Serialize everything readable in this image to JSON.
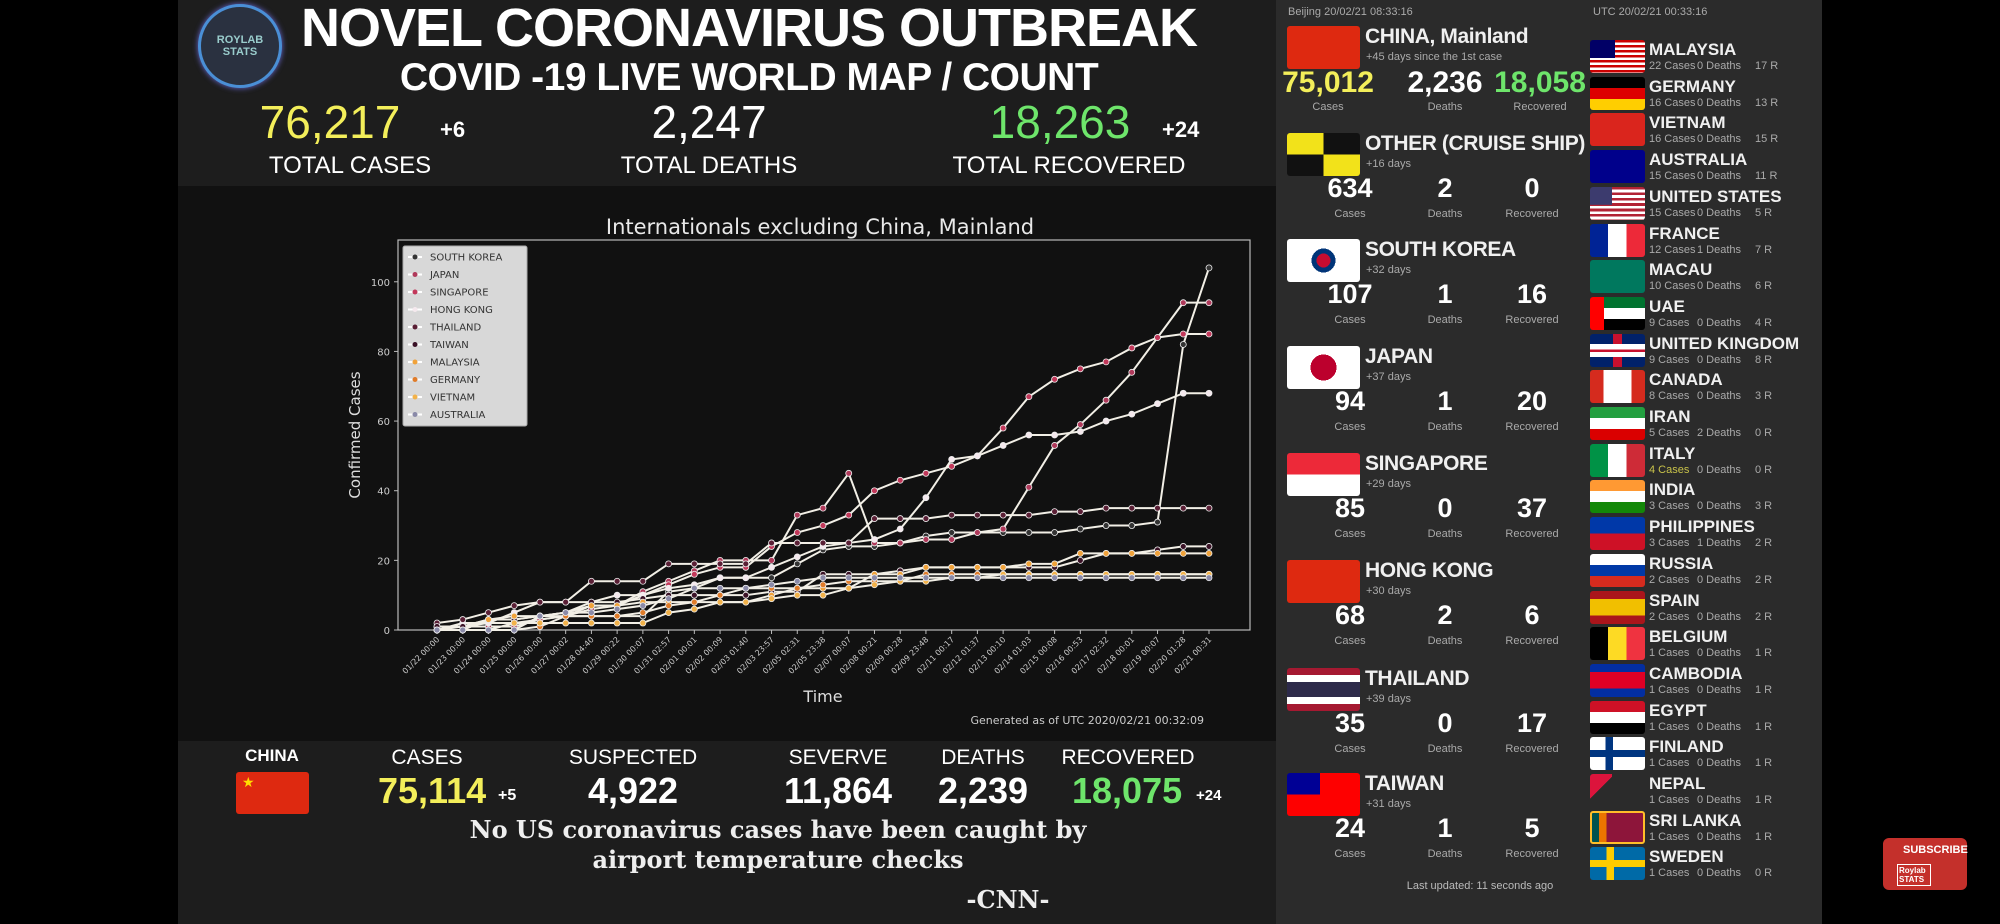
{
  "header": {
    "logo_text": "ROYLAB STATS",
    "title": "NOVEL CORONAVIRUS OUTBREAK",
    "subtitle": "COVID -19 LIVE WORLD MAP / COUNT",
    "total_cases": "76,217",
    "total_cases_delta": "+6",
    "total_cases_label": "TOTAL CASES",
    "total_deaths": "2,247",
    "total_deaths_label": "TOTAL DEATHS",
    "total_recovered": "18,263",
    "total_recovered_delta": "+24",
    "total_recovered_label": "TOTAL RECOVERED",
    "colors": {
      "cases": "#f3ee5a",
      "recovered": "#6ee56b"
    }
  },
  "chart_data": {
    "type": "line",
    "title": "Internationals excluding China, Mainland",
    "xlabel": "Time",
    "ylabel": "Confirmed Cases",
    "ylim": [
      0,
      112
    ],
    "yticks": [
      0,
      20,
      40,
      60,
      80,
      100
    ],
    "legend_position": "top-left",
    "grid": false,
    "footnote": "Generated as of UTC 2020/02/21 00:32:09",
    "categories": [
      "01/22 00:00",
      "01/23 00:00",
      "01/24 00:00",
      "01/25 00:00",
      "01/26 00:00",
      "01/27 00:02",
      "01/28 04:40",
      "01/29 00:22",
      "01/30 00:07",
      "01/31 02:57",
      "02/01 00:01",
      "02/02 00:09",
      "02/03 01:40",
      "02/03 23:57",
      "02/05 02:31",
      "02/05 23:38",
      "02/07 00:07",
      "02/08 00:21",
      "02/09 00:28",
      "02/09 23:48",
      "02/11 00:17",
      "02/12 01:37",
      "02/13 00:10",
      "02/14 01:03",
      "02/15 00:08",
      "02/16 00:53",
      "02/17 02:32",
      "02/18 00:01",
      "02/19 00:07",
      "02/20 01:28",
      "02/21 00:31"
    ],
    "series": [
      {
        "name": "SOUTH KOREA",
        "color": "#333333",
        "values": [
          1,
          1,
          2,
          2,
          3,
          4,
          4,
          4,
          4,
          11,
          12,
          15,
          15,
          15,
          19,
          23,
          24,
          24,
          25,
          27,
          28,
          28,
          28,
          28,
          28,
          29,
          30,
          30,
          31,
          82,
          104
        ]
      },
      {
        "name": "JAPAN",
        "color": "#b03a5b",
        "values": [
          1,
          1,
          1,
          1,
          3,
          4,
          6,
          7,
          11,
          14,
          17,
          20,
          20,
          20,
          33,
          35,
          45,
          25,
          25,
          26,
          26,
          28,
          29,
          41,
          53,
          59,
          66,
          74,
          84,
          94,
          94
        ]
      },
      {
        "name": "SINGAPORE",
        "color": "#c2385a",
        "values": [
          0,
          1,
          3,
          3,
          4,
          5,
          7,
          7,
          10,
          13,
          16,
          18,
          18,
          24,
          28,
          30,
          33,
          40,
          43,
          45,
          47,
          50,
          58,
          67,
          72,
          75,
          77,
          81,
          84,
          85,
          85
        ]
      },
      {
        "name": "HONG KONG",
        "color": "#f5e9ee",
        "values": [
          0,
          2,
          2,
          5,
          8,
          8,
          8,
          10,
          10,
          12,
          13,
          15,
          15,
          18,
          21,
          24,
          25,
          26,
          29,
          38,
          49,
          50,
          53,
          56,
          56,
          57,
          60,
          62,
          65,
          68,
          68
        ]
      },
      {
        "name": "THAILAND",
        "color": "#5a1f35",
        "values": [
          2,
          3,
          5,
          7,
          8,
          8,
          14,
          14,
          14,
          19,
          19,
          19,
          19,
          25,
          25,
          25,
          25,
          32,
          32,
          32,
          33,
          33,
          33,
          33,
          34,
          34,
          35,
          35,
          35,
          35,
          35
        ]
      },
      {
        "name": "TAIWAN",
        "color": "#3a1226",
        "values": [
          1,
          1,
          3,
          3,
          4,
          5,
          8,
          8,
          9,
          10,
          10,
          10,
          10,
          11,
          11,
          16,
          16,
          16,
          17,
          18,
          18,
          18,
          18,
          18,
          18,
          20,
          22,
          22,
          23,
          24,
          24
        ]
      },
      {
        "name": "MALAYSIA",
        "color": "#f0a23a",
        "values": [
          0,
          0,
          3,
          4,
          4,
          4,
          7,
          7,
          8,
          8,
          8,
          8,
          8,
          10,
          12,
          12,
          12,
          16,
          16,
          18,
          18,
          18,
          18,
          19,
          19,
          22,
          22,
          22,
          22,
          22,
          22
        ]
      },
      {
        "name": "GERMANY",
        "color": "#e07c2a",
        "values": [
          0,
          0,
          0,
          0,
          1,
          4,
          4,
          4,
          5,
          7,
          8,
          10,
          12,
          12,
          12,
          13,
          14,
          14,
          14,
          16,
          16,
          16,
          16,
          16,
          16,
          16,
          16,
          16,
          16,
          16,
          16
        ]
      },
      {
        "name": "VIETNAM",
        "color": "#f2b24a",
        "values": [
          0,
          0,
          0,
          2,
          2,
          2,
          2,
          2,
          2,
          5,
          6,
          8,
          8,
          9,
          10,
          10,
          12,
          13,
          14,
          14,
          15,
          15,
          16,
          16,
          16,
          16,
          16,
          16,
          16,
          16,
          16
        ]
      },
      {
        "name": "AUSTRALIA",
        "color": "#8a8aa8",
        "values": [
          0,
          0,
          0,
          0,
          4,
          5,
          5,
          6,
          7,
          9,
          12,
          12,
          12,
          13,
          14,
          15,
          15,
          15,
          15,
          15,
          15,
          15,
          15,
          15,
          15,
          15,
          15,
          15,
          15,
          15,
          15
        ]
      }
    ]
  },
  "china_bar": {
    "label": "CHINA",
    "cases_label": "CASES",
    "cases": "75,114",
    "cases_delta": "+5",
    "suspected_label": "SUSPECTED",
    "suspected": "4,922",
    "severe_label": "SEVERVE",
    "severe": "11,864",
    "deaths_label": "DEATHS",
    "deaths": "2,239",
    "recovered_label": "RECOVERED",
    "recovered": "18,075",
    "recovered_delta": "+24"
  },
  "quote": {
    "line1": "No US coronavirus cases have been caught by",
    "line2": "airport temperature checks",
    "source": "-CNN-"
  },
  "right_panel": {
    "beijing_time": "Beijing 20/02/21 08:33:16",
    "utc_time": "UTC 20/02/21 00:33:16",
    "last_updated": "Last updated: 11 seconds ago",
    "labels": {
      "cases": "Cases",
      "deaths": "Deaths",
      "recovered": "Recovered"
    },
    "major": [
      {
        "name": "CHINA, Mainland",
        "flag": "china-flag",
        "days": "+45 days since the 1st case",
        "cases": "75,012",
        "deaths": "2,236",
        "recovered": "18,058"
      },
      {
        "name": "OTHER (CRUISE SHIP)",
        "flag": "checkered-flag",
        "days": "+16 days",
        "cases": "634",
        "deaths": "2",
        "recovered": "0"
      },
      {
        "name": "SOUTH KOREA",
        "flag": "south-korea-flag",
        "days": "+32 days",
        "cases": "107",
        "deaths": "1",
        "recovered": "16"
      },
      {
        "name": "JAPAN",
        "flag": "japan-flag",
        "days": "+37 days",
        "cases": "94",
        "deaths": "1",
        "recovered": "20"
      },
      {
        "name": "SINGAPORE",
        "flag": "singapore-flag",
        "days": "+29 days",
        "cases": "85",
        "deaths": "0",
        "recovered": "37"
      },
      {
        "name": "HONG KONG",
        "flag": "hong-kong-flag",
        "days": "+30 days",
        "cases": "68",
        "deaths": "2",
        "recovered": "6"
      },
      {
        "name": "THAILAND",
        "flag": "thailand-flag",
        "days": "+39 days",
        "cases": "35",
        "deaths": "0",
        "recovered": "17"
      },
      {
        "name": "TAIWAN",
        "flag": "taiwan-flag",
        "days": "+31 days",
        "cases": "24",
        "deaths": "1",
        "recovered": "5"
      }
    ],
    "minor": [
      {
        "name": "MALAYSIA",
        "flag": "malaysia-flag",
        "cases": "22 Cases",
        "deaths": "0 Deaths",
        "recovered": "17 R"
      },
      {
        "name": "GERMANY",
        "flag": "germany-flag",
        "cases": "16 Cases",
        "deaths": "0 Deaths",
        "recovered": "13 R"
      },
      {
        "name": "VIETNAM",
        "flag": "vietnam-flag",
        "cases": "16 Cases",
        "deaths": "0 Deaths",
        "recovered": "15 R"
      },
      {
        "name": "AUSTRALIA",
        "flag": "australia-flag",
        "cases": "15 Cases",
        "deaths": "0 Deaths",
        "recovered": "11 R"
      },
      {
        "name": "UNITED STATES",
        "flag": "usa-flag",
        "cases": "15 Cases",
        "deaths": "0 Deaths",
        "recovered": "5 R"
      },
      {
        "name": "FRANCE",
        "flag": "france-flag",
        "cases": "12 Cases",
        "deaths": "1 Deaths",
        "recovered": "7 R"
      },
      {
        "name": "MACAU",
        "flag": "macau-flag",
        "cases": "10 Cases",
        "deaths": "0 Deaths",
        "recovered": "6 R"
      },
      {
        "name": "UAE",
        "flag": "uae-flag",
        "cases": "9 Cases",
        "deaths": "0 Deaths",
        "recovered": "4 R"
      },
      {
        "name": "UNITED KINGDOM",
        "flag": "uk-flag",
        "cases": "9 Cases",
        "deaths": "0 Deaths",
        "recovered": "8 R"
      },
      {
        "name": "CANADA",
        "flag": "canada-flag",
        "cases": "8 Cases",
        "deaths": "0 Deaths",
        "recovered": "3 R"
      },
      {
        "name": "IRAN",
        "flag": "iran-flag",
        "cases": "5 Cases",
        "deaths": "2 Deaths",
        "recovered": "0 R"
      },
      {
        "name": "ITALY",
        "flag": "italy-flag",
        "cases": "4 Cases",
        "deaths": "0 Deaths",
        "recovered": "0 R",
        "highlight": "#c8c24a"
      },
      {
        "name": "INDIA",
        "flag": "india-flag",
        "cases": "3 Cases",
        "deaths": "0 Deaths",
        "recovered": "3 R"
      },
      {
        "name": "PHILIPPINES",
        "flag": "philippines-flag",
        "cases": "3 Cases",
        "deaths": "1 Deaths",
        "recovered": "2 R"
      },
      {
        "name": "RUSSIA",
        "flag": "russia-flag",
        "cases": "2 Cases",
        "deaths": "0 Deaths",
        "recovered": "2 R"
      },
      {
        "name": "SPAIN",
        "flag": "spain-flag",
        "cases": "2 Cases",
        "deaths": "0 Deaths",
        "recovered": "2 R"
      },
      {
        "name": "BELGIUM",
        "flag": "belgium-flag",
        "cases": "1 Cases",
        "deaths": "0 Deaths",
        "recovered": "1 R"
      },
      {
        "name": "CAMBODIA",
        "flag": "cambodia-flag",
        "cases": "1 Cases",
        "deaths": "0 Deaths",
        "recovered": "1 R"
      },
      {
        "name": "EGYPT",
        "flag": "egypt-flag",
        "cases": "1 Cases",
        "deaths": "0 Deaths",
        "recovered": "1 R"
      },
      {
        "name": "FINLAND",
        "flag": "finland-flag",
        "cases": "1 Cases",
        "deaths": "0 Deaths",
        "recovered": "1 R"
      },
      {
        "name": "NEPAL",
        "flag": "nepal-flag",
        "cases": "1 Cases",
        "deaths": "0 Deaths",
        "recovered": "1 R"
      },
      {
        "name": "SRI LANKA",
        "flag": "sri-lanka-flag",
        "cases": "1 Cases",
        "deaths": "0 Deaths",
        "recovered": "1 R"
      },
      {
        "name": "SWEDEN",
        "flag": "sweden-flag",
        "cases": "1 Cases",
        "deaths": "0 Deaths",
        "recovered": "0 R"
      }
    ]
  },
  "subscribe": {
    "label": "SUBSCRIBE",
    "logo_text": "Roylab STATS"
  }
}
